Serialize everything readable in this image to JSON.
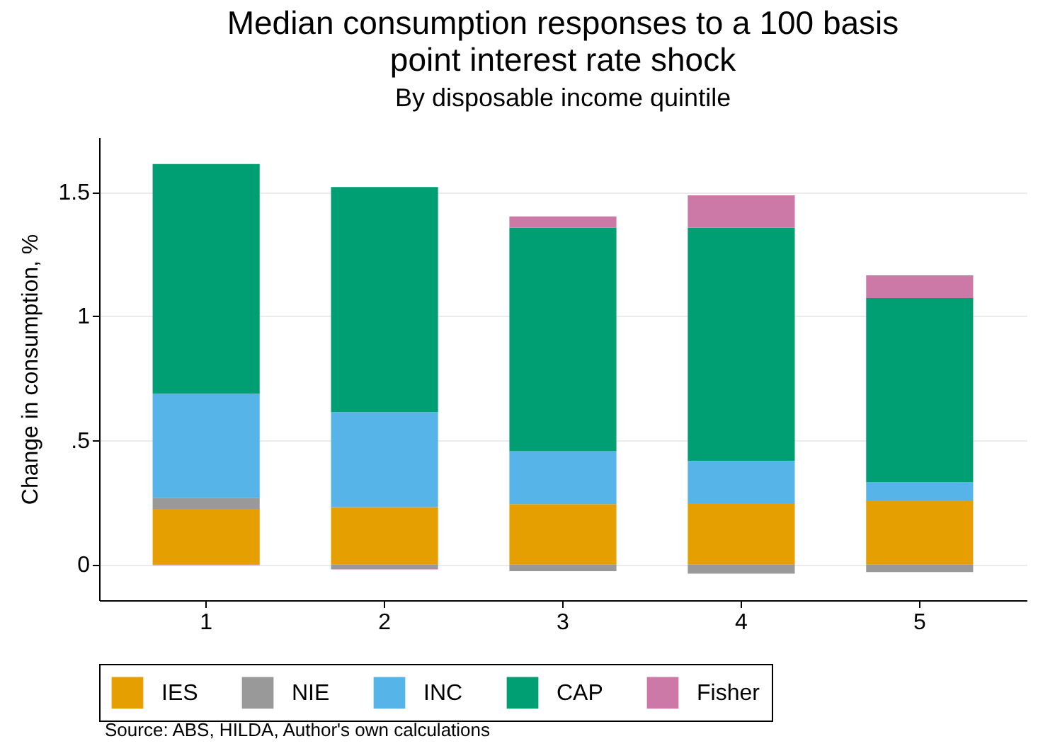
{
  "chart_data": {
    "type": "bar",
    "title": "Median consumption responses to a 100 basis point interest rate shock",
    "subtitle": "By disposable income quintile",
    "ylabel": "Change in consumption, %",
    "categories": [
      "1",
      "2",
      "3",
      "4",
      "5"
    ],
    "stacked": true,
    "series": [
      {
        "name": "IES",
        "color": "#e69f00",
        "values": [
          0.223,
          0.23,
          0.242,
          0.246,
          0.257
        ]
      },
      {
        "name": "NIE",
        "color": "#999999",
        "values": [
          0.045,
          -0.017,
          -0.028,
          -0.038,
          -0.032
        ]
      },
      {
        "name": "INC",
        "color": "#56b4e9",
        "values": [
          0.419,
          0.383,
          0.213,
          0.17,
          0.074
        ]
      },
      {
        "name": "CAP",
        "color": "#009e73",
        "values": [
          0.925,
          0.907,
          0.901,
          0.94,
          0.742
        ]
      },
      {
        "name": "Fisher",
        "color": "#cc79a7",
        "values": [
          -0.004,
          -0.004,
          0.045,
          0.13,
          0.091
        ]
      }
    ],
    "ylim": [
      -0.145,
      1.72
    ],
    "yticks": [
      0,
      {
        "value": 0.5,
        "label": ".5"
      },
      1,
      1.5
    ],
    "grid": "y",
    "legend": "bottom",
    "annotations": [
      "Source: ABS, HILDA, Author's own calculations"
    ]
  }
}
